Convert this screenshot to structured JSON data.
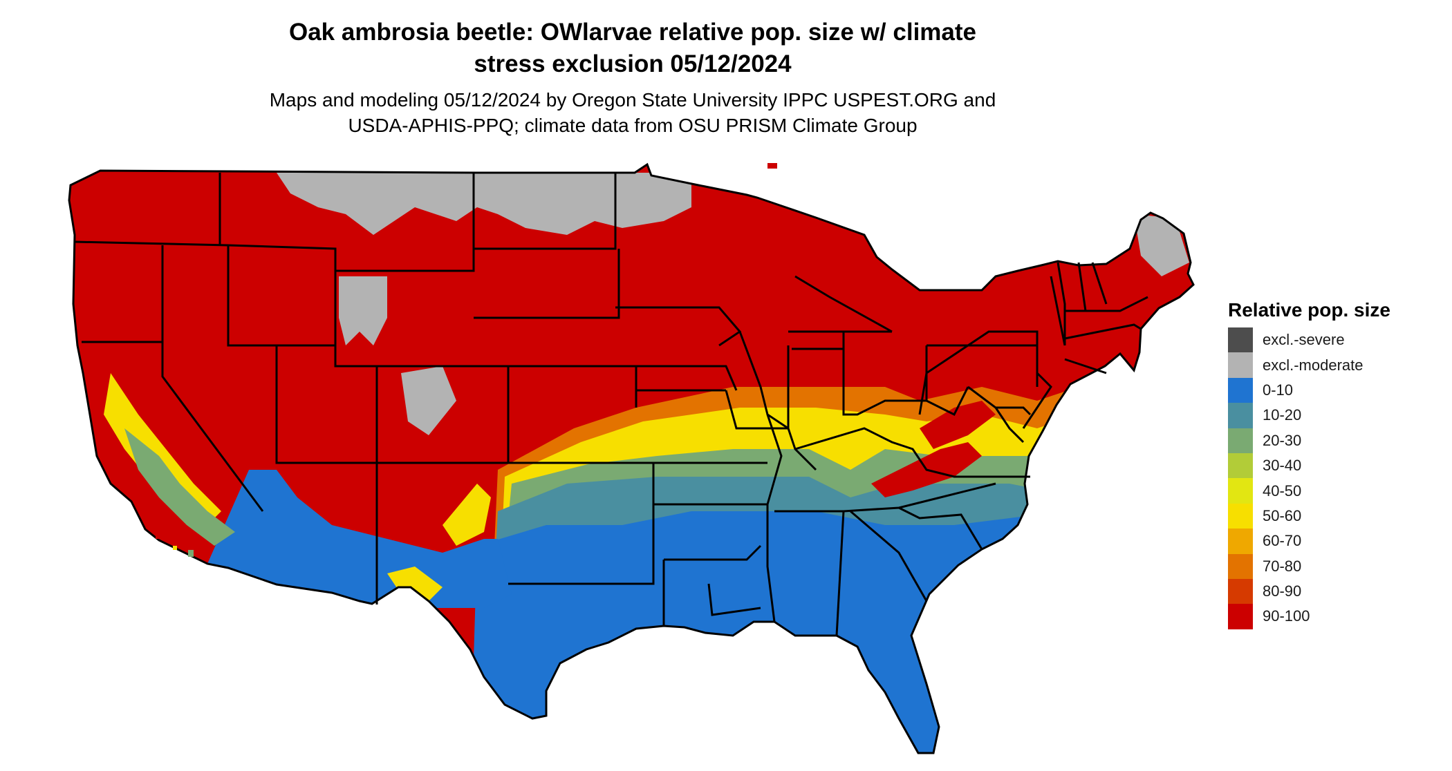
{
  "title_line1": "Oak ambrosia beetle: OWlarvae relative pop. size w/ climate",
  "title_line2": "stress exclusion 05/12/2024",
  "subtitle_line1": "Maps and modeling 05/12/2024 by Oregon State University IPPC USPEST.ORG and",
  "subtitle_line2": "USDA-APHIS-PPQ; climate data from OSU PRISM Climate Group",
  "legend": {
    "title": "Relative pop. size",
    "items": [
      {
        "label": "excl.-severe",
        "color": "#4d4d4d"
      },
      {
        "label": "excl.-moderate",
        "color": "#b3b3b3"
      },
      {
        "label": "0-10",
        "color": "#1f74d1"
      },
      {
        "label": "10-20",
        "color": "#4a8fa0"
      },
      {
        "label": "20-30",
        "color": "#7aaa72"
      },
      {
        "label": "30-40",
        "color": "#b2cc38"
      },
      {
        "label": "40-50",
        "color": "#e2e612"
      },
      {
        "label": "50-60",
        "color": "#f7df00"
      },
      {
        "label": "60-70",
        "color": "#efa800"
      },
      {
        "label": "70-80",
        "color": "#e37300"
      },
      {
        "label": "80-90",
        "color": "#d63a00"
      },
      {
        "label": "90-100",
        "color": "#cc0000"
      }
    ]
  }
}
